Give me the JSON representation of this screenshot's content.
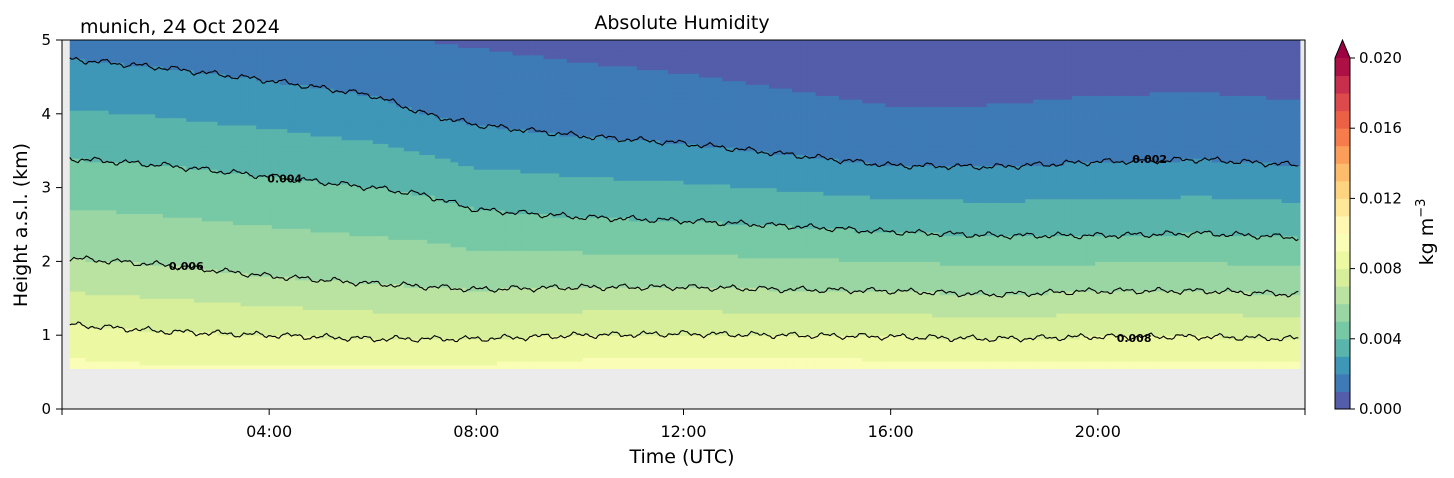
{
  "chart_data": {
    "type": "heatmap",
    "title": "Absolute Humidity",
    "subtitle": "munich, 24 Oct 2024",
    "xlabel": "Time (UTC)",
    "ylabel": "Height a.s.l. (km)",
    "x_unit": "hours UTC",
    "xlim": [
      0,
      24
    ],
    "ylim": [
      0,
      5
    ],
    "x_ticks": [
      "04:00",
      "08:00",
      "12:00",
      "16:00",
      "20:00"
    ],
    "x_tick_values": [
      4,
      8,
      12,
      16,
      20
    ],
    "y_ticks": [
      "0",
      "1",
      "2",
      "3",
      "4",
      "5"
    ],
    "y_tick_values": [
      0,
      1,
      2,
      3,
      4,
      5
    ],
    "data_bottom_km": 0.55,
    "no_data_color": "#ebebeb",
    "colorbar": {
      "label": "kg m",
      "label_superscript": "−3",
      "range": [
        0.0,
        0.02
      ],
      "extend": "max",
      "ticks": [
        "0.000",
        "0.004",
        "0.008",
        "0.012",
        "0.016",
        "0.020"
      ],
      "tick_values": [
        0.0,
        0.004,
        0.008,
        0.012,
        0.016,
        0.02
      ],
      "colormap": "Spectral_r",
      "colors": [
        "#5e4fa2",
        "#3288bd",
        "#66c2a5",
        "#abdda4",
        "#e6f598",
        "#ffffbf",
        "#fee08b",
        "#fdae61",
        "#f46d43",
        "#d53e4f",
        "#9e0142"
      ]
    },
    "contours": [
      {
        "level": "0.002",
        "x": [
          0,
          2,
          4,
          6,
          7,
          8,
          10,
          12,
          14,
          16,
          18,
          20,
          22,
          24
        ],
        "y": [
          4.75,
          4.62,
          4.45,
          4.25,
          4.0,
          3.85,
          3.7,
          3.6,
          3.45,
          3.3,
          3.28,
          3.35,
          3.38,
          3.3
        ],
        "label_x": 21.0
      },
      {
        "level": "0.004",
        "x": [
          0,
          2,
          4,
          6,
          7,
          8,
          10,
          12,
          14,
          16,
          18,
          20,
          22,
          24
        ],
        "y": [
          3.4,
          3.3,
          3.15,
          3.0,
          2.9,
          2.7,
          2.6,
          2.55,
          2.48,
          2.4,
          2.35,
          2.35,
          2.38,
          2.32
        ],
        "label_x": 4.3
      },
      {
        "level": "0.006",
        "x": [
          0,
          2,
          4,
          6,
          8,
          10,
          12,
          14,
          16,
          18,
          20,
          22,
          24
        ],
        "y": [
          2.05,
          1.95,
          1.8,
          1.7,
          1.62,
          1.65,
          1.65,
          1.62,
          1.6,
          1.55,
          1.6,
          1.6,
          1.55
        ],
        "label_x": 2.4
      },
      {
        "level": "0.008",
        "x": [
          0,
          2,
          4,
          6,
          8,
          10,
          12,
          14,
          16,
          18,
          20,
          22,
          24
        ],
        "y": [
          1.15,
          1.05,
          1.0,
          0.95,
          0.95,
          1.0,
          1.02,
          1.0,
          0.98,
          0.95,
          0.98,
          0.98,
          0.95
        ],
        "label_x": 20.7
      }
    ]
  }
}
